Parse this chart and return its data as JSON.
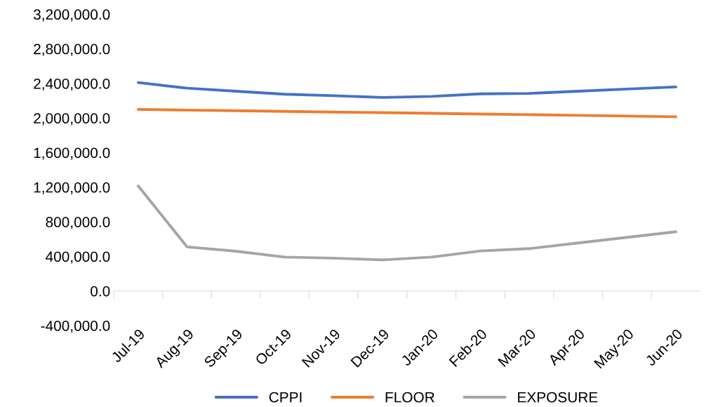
{
  "chart_data": {
    "type": "line",
    "categories": [
      "Jul-19",
      "Aug-19",
      "Sep-19",
      "Oct-19",
      "Nov-19",
      "Dec-19",
      "Jan-20",
      "Feb-20",
      "Mar-20",
      "Apr-20",
      "May-20",
      "Jun-20"
    ],
    "series": [
      {
        "name": "CPPI",
        "color": "#4472c4",
        "values": [
          2410000,
          2345000,
          2310000,
          2275000,
          2258000,
          2238000,
          2250000,
          2280000,
          2285000,
          2310000,
          2335000,
          2360000
        ]
      },
      {
        "name": "FLOOR",
        "color": "#ed7d31",
        "values": [
          2100000,
          2092000,
          2085000,
          2077000,
          2069000,
          2062000,
          2054000,
          2046000,
          2039000,
          2031000,
          2023000,
          2015000
        ]
      },
      {
        "name": "EXPOSURE",
        "color": "#a5a5a5",
        "values": [
          1215000,
          510000,
          460000,
          392000,
          380000,
          360000,
          392000,
          463000,
          490000,
          555000,
          620000,
          685000
        ]
      }
    ],
    "ylim": [
      -400000,
      3200000
    ],
    "yticks": [
      {
        "value": -400000,
        "label": "-400,000.0"
      },
      {
        "value": 0,
        "label": "0.0"
      },
      {
        "value": 400000,
        "label": "400,000.0"
      },
      {
        "value": 800000,
        "label": "800,000.0"
      },
      {
        "value": 1200000,
        "label": "1,200,000.0"
      },
      {
        "value": 1600000,
        "label": "1,600,000.0"
      },
      {
        "value": 2000000,
        "label": "2,000,000.0"
      },
      {
        "value": 2400000,
        "label": "2,400,000.0"
      },
      {
        "value": 2800000,
        "label": "2,800,000.0"
      },
      {
        "value": 3200000,
        "label": "3,200,000.0"
      }
    ],
    "grid": false,
    "legend": "bottom",
    "marker": "none",
    "line_style": "solid"
  }
}
